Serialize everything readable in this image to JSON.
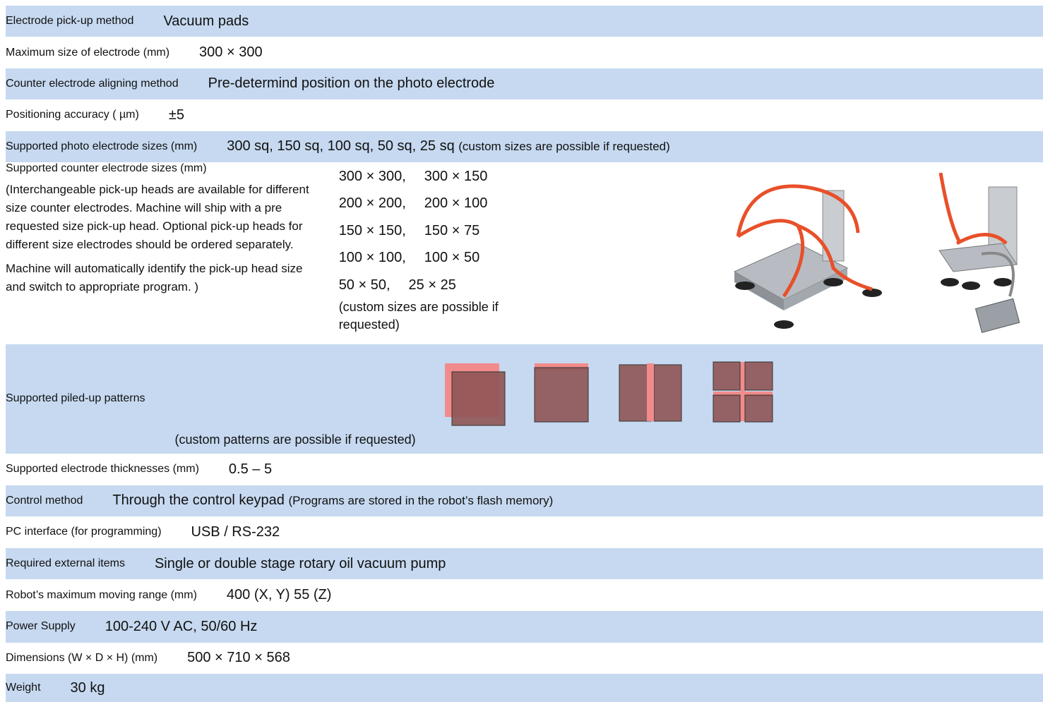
{
  "rows": [
    {
      "label": "Electrode pick-up method",
      "value": "Vacuum pads"
    },
    {
      "label": "Maximum size of electrode (mm)",
      "value": "300 × 300"
    },
    {
      "label": "Counter electrode aligning method",
      "value": "Pre-determind position on the photo electrode"
    },
    {
      "label": "Positioning accuracy ( µm)",
      "value": "±5"
    },
    {
      "label": "Supported photo electrode sizes (mm)",
      "value": "300 sq, 150 sq, 100 sq,  50 sq, 25 sq",
      "value_note": "(custom sizes are possible if requested)"
    },
    {
      "label": "Supported counter electrode sizes (mm)",
      "label_notes": [
        "(Interchangeable pick-up heads are available for different",
        "size counter electrodes. Machine will ship with a pre",
        "requested size pick-up head. Optional pick-up heads for",
        "different size electrodes should be ordered separately.",
        "Machine will automatically identify the pick-up head size",
        "and switch to appropriate program. )"
      ],
      "sizes": [
        [
          "300 × 300,",
          "300 × 150"
        ],
        [
          "200 × 200,",
          "200 × 100"
        ],
        [
          "150 × 150,",
          "150 × 75"
        ],
        [
          "100 × 100,",
          "100 × 50"
        ],
        [
          "50 × 50,",
          "25 × 25"
        ]
      ],
      "note": "(custom sizes are possible if requested)"
    },
    {
      "label": "Supported piled-up patterns",
      "note": "(custom patterns are possible if requested)"
    },
    {
      "label": "Supported electrode thicknesses (mm)",
      "value": "0.5 – 5"
    },
    {
      "label": "Control method",
      "value": "Through the control keypad",
      "value_note": "(Programs are stored in the robot’s flash memory)"
    },
    {
      "label": "PC interface (for programming)",
      "value": "USB / RS-232"
    },
    {
      "label": "Required external items",
      "value": "Single or double stage rotary oil vacuum pump"
    },
    {
      "label": "Robot’s maximum moving range (mm)",
      "value": "400 (X, Y) 55 (Z)"
    },
    {
      "label": "Power Supply",
      "value": "100-240 V AC, 50/60 Hz"
    },
    {
      "label": "Dimensions (W × D × H)  (mm)",
      "value": "500 × 710 × 568"
    },
    {
      "label": "Weight",
      "value": "30 kg"
    }
  ]
}
